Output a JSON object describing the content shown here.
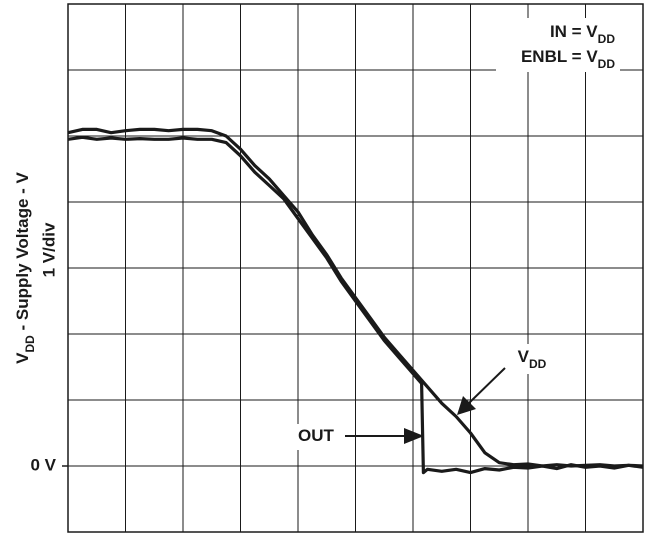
{
  "chart_data": {
    "type": "line",
    "xlim": [
      0,
      10
    ],
    "ylim": [
      -1,
      7
    ],
    "xgrid": [
      0,
      1,
      2,
      3,
      4,
      5,
      6,
      7,
      8,
      9,
      10
    ],
    "ygrid": [
      -1,
      0,
      1,
      2,
      3,
      4,
      5,
      6,
      7
    ],
    "yticks": [
      {
        "value": 0,
        "label": "0 V"
      }
    ],
    "grid": true,
    "ylabel": [
      {
        "text": "V"
      },
      {
        "text": "DD",
        "sub": true
      },
      {
        "text": " - Supply Voltage - V"
      }
    ],
    "yscale_label": "1 V/div",
    "conditions": [
      [
        {
          "text": "IN = V"
        },
        {
          "text": "DD",
          "sub": true
        }
      ],
      [
        {
          "text": "ENBL = V"
        },
        {
          "text": "DD",
          "sub": true
        }
      ]
    ],
    "series": [
      {
        "label": [
          {
            "text": "V"
          },
          {
            "text": "DD",
            "sub": true
          }
        ],
        "color": "#1a1a1a",
        "x": [
          0,
          0.25,
          0.5,
          0.75,
          1,
          1.25,
          1.5,
          1.75,
          2,
          2.25,
          2.5,
          2.75,
          3,
          3.25,
          3.5,
          3.75,
          4,
          4.25,
          4.5,
          4.75,
          5,
          5.25,
          5.5,
          5.75,
          6,
          6.25,
          6.5,
          6.75,
          7,
          7.25,
          7.5,
          7.75,
          8,
          8.25,
          8.5,
          8.75,
          9,
          9.25,
          9.5,
          9.75,
          10
        ],
        "values": [
          5.05,
          5.1,
          5.1,
          5.05,
          5.08,
          5.1,
          5.1,
          5.08,
          5.1,
          5.1,
          5.08,
          5.0,
          4.8,
          4.55,
          4.35,
          4.1,
          3.85,
          3.5,
          3.2,
          2.85,
          2.55,
          2.25,
          1.95,
          1.7,
          1.45,
          1.2,
          0.95,
          0.75,
          0.5,
          0.2,
          0.05,
          0.02,
          0.03,
          0,
          0.02,
          0,
          0.01,
          0.02,
          0,
          0.01,
          0
        ]
      },
      {
        "label": [
          {
            "text": "OUT"
          }
        ],
        "color": "#1a1a1a",
        "x": [
          0,
          0.25,
          0.5,
          0.75,
          1,
          1.25,
          1.5,
          1.75,
          2,
          2.25,
          2.5,
          2.75,
          3,
          3.25,
          3.5,
          3.75,
          4,
          4.25,
          4.5,
          4.75,
          5,
          5.25,
          5.5,
          5.75,
          6,
          6.15,
          6.18,
          6.25,
          6.5,
          6.75,
          7,
          7.25,
          7.5,
          7.75,
          8,
          8.25,
          8.5,
          8.75,
          9,
          9.25,
          9.5,
          9.75,
          10
        ],
        "values": [
          4.95,
          4.98,
          4.95,
          4.97,
          4.95,
          4.96,
          4.95,
          4.95,
          4.97,
          4.95,
          4.95,
          4.9,
          4.7,
          4.45,
          4.25,
          4.05,
          3.75,
          3.45,
          3.15,
          2.8,
          2.5,
          2.2,
          1.9,
          1.65,
          1.4,
          1.25,
          -0.1,
          -0.05,
          -0.08,
          -0.05,
          -0.1,
          -0.04,
          -0.06,
          -0.02,
          -0.03,
          0,
          -0.04,
          0.02,
          -0.02,
          0,
          -0.03,
          0.01,
          -0.02
        ]
      }
    ]
  }
}
